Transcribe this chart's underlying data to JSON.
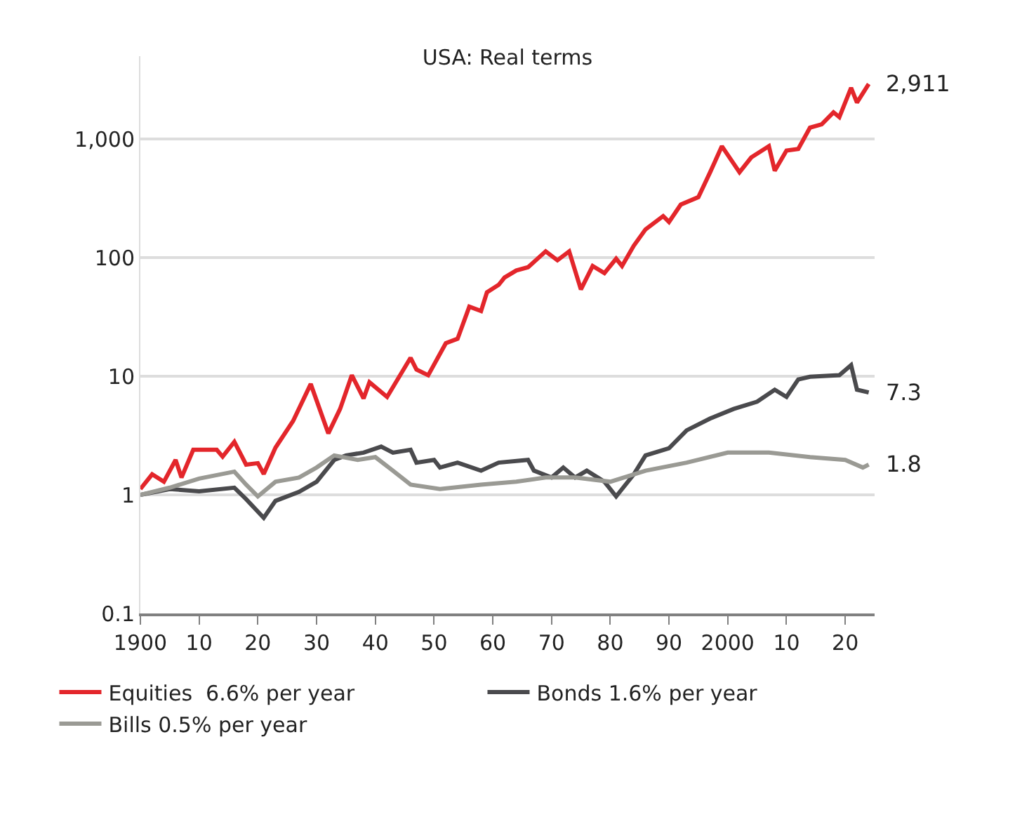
{
  "chart_data": {
    "type": "line",
    "title": "USA: Real terms",
    "log": "y",
    "grid": "y",
    "legend": "bottom",
    "line_style": "solid",
    "marker": "none",
    "xlim": [
      1900,
      2025
    ],
    "ylim": [
      0.1,
      5000
    ],
    "xticks": [
      {
        "value": 1900,
        "label": "1900"
      },
      {
        "value": 1910,
        "label": "10"
      },
      {
        "value": 1920,
        "label": "20"
      },
      {
        "value": 1930,
        "label": "30"
      },
      {
        "value": 1940,
        "label": "40"
      },
      {
        "value": 1950,
        "label": "50"
      },
      {
        "value": 1960,
        "label": "60"
      },
      {
        "value": 1970,
        "label": "70"
      },
      {
        "value": 1980,
        "label": "80"
      },
      {
        "value": 1990,
        "label": "90"
      },
      {
        "value": 2000,
        "label": "2000"
      },
      {
        "value": 2010,
        "label": "10"
      },
      {
        "value": 2020,
        "label": "20"
      }
    ],
    "yticks": [
      0.1,
      1,
      10,
      100,
      {
        "value": 1000,
        "label": "1,000"
      }
    ],
    "series": [
      {
        "name": "Equities  6.6% per year",
        "color": "#e3262b",
        "x": [
          1900,
          1902,
          1904,
          1906,
          1907,
          1909,
          1913,
          1914,
          1916,
          1918,
          1920,
          1921,
          1923,
          1926,
          1929,
          1932,
          1934,
          1936,
          1938,
          1939,
          1942,
          1946,
          1947,
          1949,
          1952,
          1954,
          1956,
          1958,
          1959,
          1961,
          1962,
          1964,
          1966,
          1969,
          1971,
          1973,
          1975,
          1977,
          1979,
          1981,
          1982,
          1984,
          1986,
          1989,
          1990,
          1992,
          1995,
          1997,
          1999,
          2002,
          2004,
          2007,
          2008,
          2010,
          2012,
          2014,
          2016,
          2018,
          2019,
          2021,
          2022,
          2024
        ],
        "values": [
          1.12,
          1.49,
          1.29,
          1.97,
          1.4,
          2.4,
          2.4,
          2.1,
          2.8,
          1.8,
          1.85,
          1.5,
          2.5,
          4.2,
          8.6,
          3.3,
          5.3,
          10.2,
          6.5,
          8.9,
          6.7,
          14.3,
          11.4,
          10.2,
          19,
          20.7,
          38.6,
          35.5,
          51,
          59,
          68,
          78,
          83,
          113,
          95,
          113,
          54,
          85,
          74,
          98,
          85,
          126,
          173,
          224,
          200,
          280,
          324,
          525,
          870,
          525,
          700,
          870,
          540,
          800,
          825,
          1250,
          1330,
          1680,
          1530,
          2700,
          2030,
          2911
        ]
      },
      {
        "name": "Bonds 1.6% per year",
        "color": "#4a4a4d",
        "x": [
          1900,
          1905,
          1910,
          1916,
          1918,
          1921,
          1923,
          1927,
          1930,
          1933,
          1935,
          1938,
          1941,
          1943,
          1946,
          1947,
          1950,
          1951,
          1954,
          1958,
          1961,
          1966,
          1967,
          1970,
          1972,
          1974,
          1976,
          1979,
          1981,
          1984,
          1986,
          1990,
          1993,
          1997,
          2001,
          2005,
          2008,
          2010,
          2012,
          2014,
          2019,
          2021,
          2022,
          2024
        ],
        "values": [
          1.0,
          1.12,
          1.07,
          1.15,
          0.92,
          0.64,
          0.89,
          1.06,
          1.29,
          1.97,
          2.15,
          2.27,
          2.55,
          2.27,
          2.4,
          1.87,
          1.97,
          1.7,
          1.87,
          1.6,
          1.87,
          1.97,
          1.6,
          1.4,
          1.7,
          1.4,
          1.6,
          1.29,
          0.97,
          1.49,
          2.15,
          2.47,
          3.5,
          4.4,
          5.3,
          6.1,
          7.7,
          6.7,
          9.4,
          9.9,
          10.2,
          12.4,
          7.7,
          7.3
        ]
      },
      {
        "name": "Bills 0.5% per year",
        "color": "#9a9a94",
        "x": [
          1900,
          1905,
          1910,
          1916,
          1918,
          1920,
          1923,
          1927,
          1930,
          1933,
          1937,
          1940,
          1943,
          1946,
          1951,
          1958,
          1964,
          1969,
          1974,
          1980,
          1986,
          1993,
          2000,
          2007,
          2014,
          2020,
          2023,
          2024
        ],
        "values": [
          1.0,
          1.15,
          1.37,
          1.57,
          1.22,
          0.97,
          1.29,
          1.4,
          1.7,
          2.15,
          1.97,
          2.08,
          1.6,
          1.22,
          1.12,
          1.22,
          1.29,
          1.4,
          1.4,
          1.29,
          1.6,
          1.87,
          2.27,
          2.27,
          2.08,
          1.97,
          1.7,
          1.8
        ]
      }
    ],
    "annotations": [
      "2,911",
      "7.3",
      "1.8"
    ]
  }
}
